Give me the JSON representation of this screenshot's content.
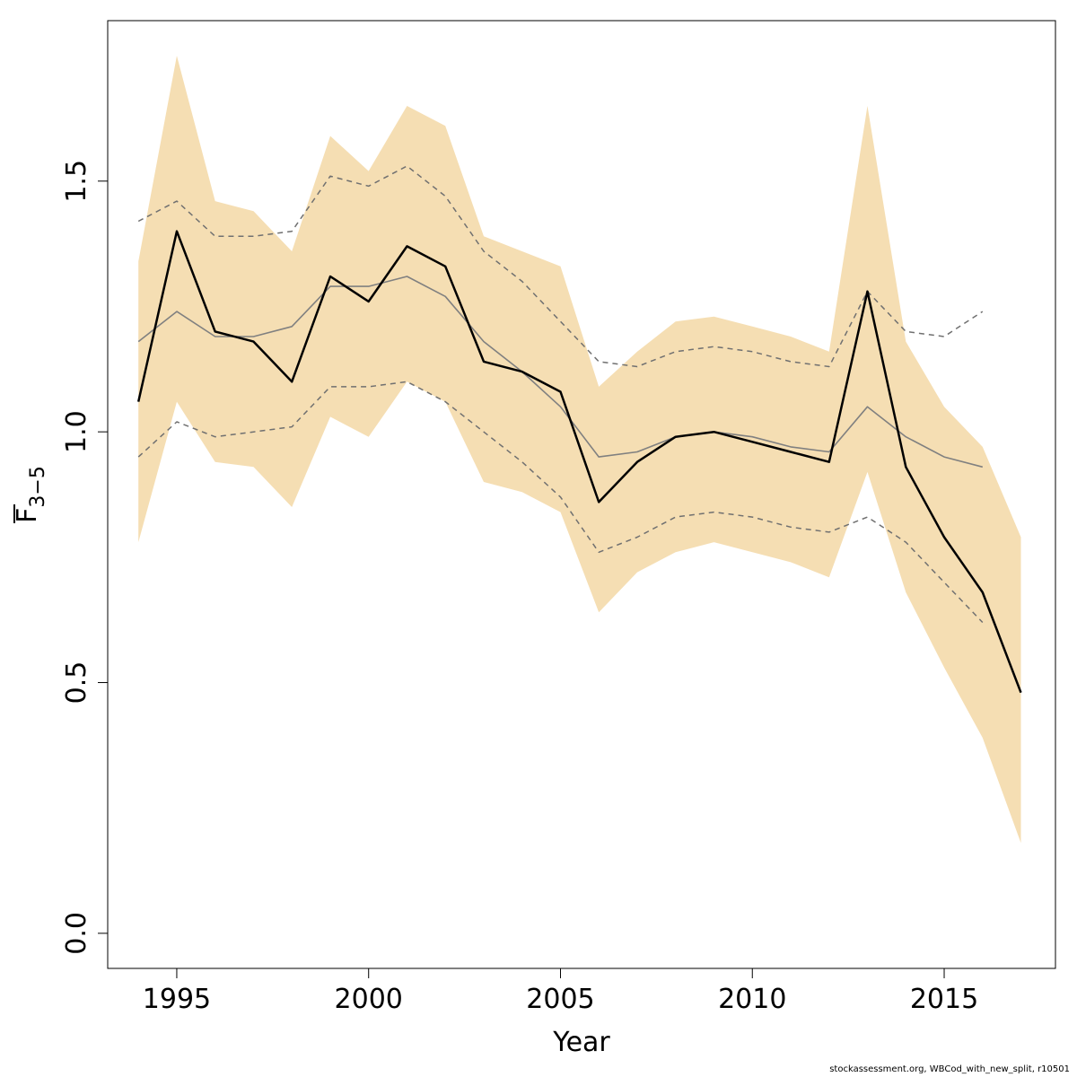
{
  "chart_data": {
    "type": "line",
    "xlabel": "Year",
    "ylabel": {
      "main": "F",
      "subscript": "3−5"
    },
    "xlim": [
      1993.2,
      2017.9
    ],
    "ylim": [
      -0.07,
      1.82
    ],
    "x_ticks": [
      "1995",
      "2000",
      "2005",
      "2010",
      "2015"
    ],
    "y_ticks": [
      "0.0",
      "0.5",
      "1.0",
      "1.5"
    ],
    "colors": {
      "band": "#f5deb3",
      "estimate": "#000000",
      "retro": "#808080",
      "retro_ci": "#707070"
    },
    "band": {
      "x": [
        1994,
        1995,
        1996,
        1997,
        1998,
        1999,
        2000,
        2001,
        2002,
        2003,
        2004,
        2005,
        2006,
        2007,
        2008,
        2009,
        2010,
        2011,
        2012,
        2013,
        2014,
        2015,
        2016,
        2017
      ],
      "upper": [
        1.34,
        1.75,
        1.46,
        1.44,
        1.36,
        1.59,
        1.52,
        1.65,
        1.61,
        1.39,
        1.36,
        1.33,
        1.09,
        1.16,
        1.22,
        1.23,
        1.21,
        1.19,
        1.16,
        1.65,
        1.18,
        1.05,
        0.97,
        0.79
      ],
      "lower": [
        0.78,
        1.06,
        0.94,
        0.93,
        0.85,
        1.03,
        0.99,
        1.1,
        1.06,
        0.9,
        0.88,
        0.84,
        0.64,
        0.72,
        0.76,
        0.78,
        0.76,
        0.74,
        0.71,
        0.92,
        0.68,
        0.53,
        0.39,
        0.18
      ]
    },
    "series": [
      {
        "x": [
          1994,
          1995,
          1996,
          1997,
          1998,
          1999,
          2000,
          2001,
          2002,
          2003,
          2004,
          2005,
          2006,
          2007,
          2008,
          2009,
          2010,
          2011,
          2012,
          2013,
          2014,
          2015,
          2016,
          2017
        ],
        "values": [
          1.06,
          1.4,
          1.2,
          1.18,
          1.1,
          1.31,
          1.26,
          1.37,
          1.33,
          1.14,
          1.12,
          1.08,
          0.86,
          0.94,
          0.99,
          1.0,
          0.98,
          0.96,
          0.94,
          1.28,
          0.93,
          0.79,
          0.68,
          0.48
        ],
        "style": "solid-thick"
      },
      {
        "x": [
          1994,
          1995,
          1996,
          1997,
          1998,
          1999,
          2000,
          2001,
          2002,
          2003,
          2004,
          2005,
          2006,
          2007,
          2008,
          2009,
          2010,
          2011,
          2012,
          2013,
          2014,
          2015,
          2016
        ],
        "values": [
          1.18,
          1.24,
          1.19,
          1.19,
          1.21,
          1.29,
          1.29,
          1.31,
          1.27,
          1.18,
          1.12,
          1.05,
          0.95,
          0.96,
          0.99,
          1.0,
          0.99,
          0.97,
          0.96,
          1.05,
          0.99,
          0.95,
          0.93
        ],
        "style": "solid-thin"
      },
      {
        "x": [
          1994,
          1995,
          1996,
          1997,
          1998,
          1999,
          2000,
          2001,
          2002,
          2003,
          2004,
          2005,
          2006,
          2007,
          2008,
          2009,
          2010,
          2011,
          2012,
          2013,
          2014,
          2015,
          2016
        ],
        "values": [
          1.42,
          1.46,
          1.39,
          1.39,
          1.4,
          1.51,
          1.49,
          1.53,
          1.47,
          1.36,
          1.3,
          1.22,
          1.14,
          1.13,
          1.16,
          1.17,
          1.16,
          1.14,
          1.13,
          1.28,
          1.2,
          1.19,
          1.24
        ],
        "style": "dashed"
      },
      {
        "x": [
          1994,
          1995,
          1996,
          1997,
          1998,
          1999,
          2000,
          2001,
          2002,
          2003,
          2004,
          2005,
          2006,
          2007,
          2008,
          2009,
          2010,
          2011,
          2012,
          2013,
          2014,
          2015,
          2016
        ],
        "values": [
          0.95,
          1.02,
          0.99,
          1.0,
          1.01,
          1.09,
          1.09,
          1.1,
          1.06,
          1.0,
          0.94,
          0.87,
          0.76,
          0.79,
          0.83,
          0.84,
          0.83,
          0.81,
          0.8,
          0.83,
          0.78,
          0.7,
          0.62
        ],
        "style": "dashed"
      }
    ],
    "grid": false,
    "legend": "none"
  },
  "footer": "stockassessment.org, WBCod_with_new_split, r10501"
}
